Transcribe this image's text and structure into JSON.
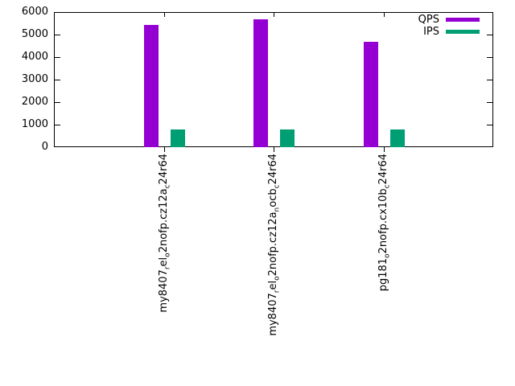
{
  "chart_data": {
    "type": "bar",
    "title": "",
    "xlabel": "",
    "ylabel": "",
    "categories": [
      "my8407_rel_o2nofp.cz12a_c24r64",
      "my8407_rel_o2nofp.cz12a_nocb_c24r64",
      "pg181_o2nofp.cx10b_c24r64"
    ],
    "series": [
      {
        "name": "QPS",
        "color": "#9400D3",
        "values": [
          5440,
          5690,
          4680
        ]
      },
      {
        "name": "IPS",
        "color": "#009E73",
        "values": [
          775,
          780,
          775
        ]
      }
    ],
    "ylim": [
      0,
      6000
    ],
    "ytick_step": 1000,
    "ytick_labels": [
      "0",
      "1000",
      "2000",
      "3000",
      "4000",
      "5000",
      "6000"
    ],
    "grid": false,
    "legend_position": "top-right",
    "x_label_rotation": -90,
    "subscript_marker": "_"
  }
}
